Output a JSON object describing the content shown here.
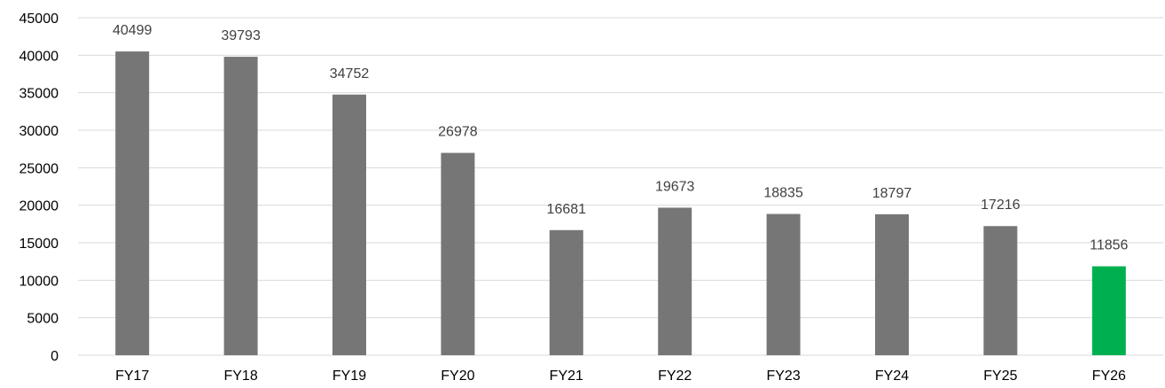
{
  "chart_data": {
    "type": "bar",
    "title": "",
    "xlabel": "",
    "ylabel": "",
    "categories": [
      "FY17",
      "FY18",
      "FY19",
      "FY20",
      "FY21",
      "FY22",
      "FY23",
      "FY24",
      "FY25",
      "FY26"
    ],
    "values": [
      40499,
      39793,
      34752,
      26978,
      16681,
      19673,
      18835,
      18797,
      17216,
      11856
    ],
    "data_labels": [
      "40499",
      "39793",
      "34752",
      "26978",
      "16681",
      "19673",
      "18835",
      "18797",
      "17216",
      "11856"
    ],
    "y_ticks": [
      "0",
      "5000",
      "10000",
      "15000",
      "20000",
      "25000",
      "30000",
      "35000",
      "40000",
      "45000"
    ],
    "ylim": [
      0,
      45000
    ],
    "grid": true,
    "legend": "none",
    "bar_colors": [
      "#767676",
      "#767676",
      "#767676",
      "#767676",
      "#767676",
      "#767676",
      "#767676",
      "#767676",
      "#767676",
      "#00b050"
    ]
  }
}
